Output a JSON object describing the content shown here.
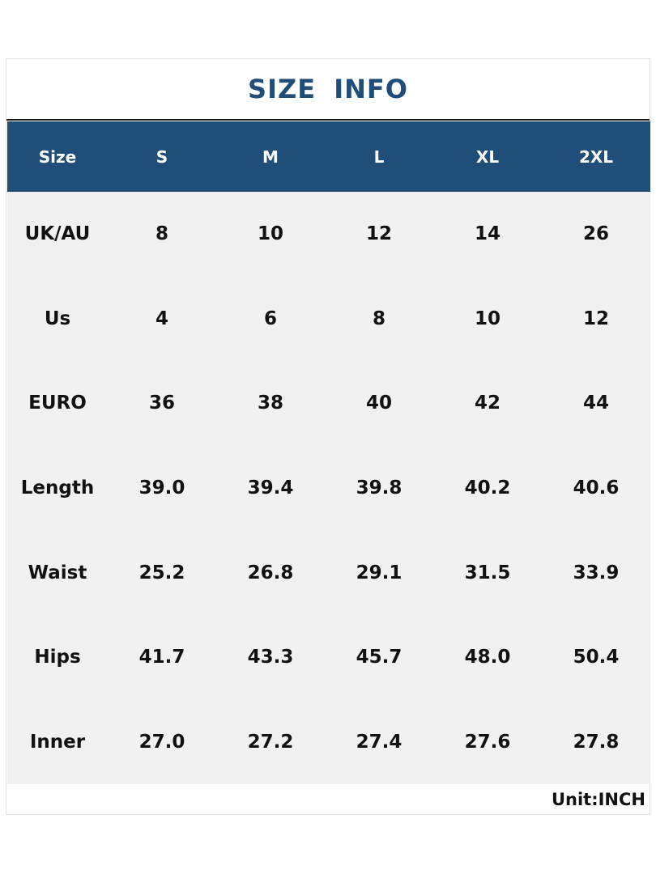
{
  "title": "SIZE INFO",
  "colors": {
    "header_bg": "#1f4e79",
    "title_text": "#1f4e79",
    "body_bg": "#f1f1f1"
  },
  "table": {
    "headers": [
      "Size",
      "S",
      "M",
      "L",
      "XL",
      "2XL"
    ],
    "rows": [
      [
        "UK/AU",
        "8",
        "10",
        "12",
        "14",
        "26"
      ],
      [
        "Us",
        "4",
        "6",
        "8",
        "10",
        "12"
      ],
      [
        "EURO",
        "36",
        "38",
        "40",
        "42",
        "44"
      ],
      [
        "Length",
        "39.0",
        "39.4",
        "39.8",
        "40.2",
        "40.6"
      ],
      [
        "Waist",
        "25.2",
        "26.8",
        "29.1",
        "31.5",
        "33.9"
      ],
      [
        "Hips",
        "41.7",
        "43.3",
        "45.7",
        "48.0",
        "50.4"
      ],
      [
        "Inner",
        "27.0",
        "27.2",
        "27.4",
        "27.6",
        "27.8"
      ]
    ]
  },
  "unit": "Unit:INCH"
}
